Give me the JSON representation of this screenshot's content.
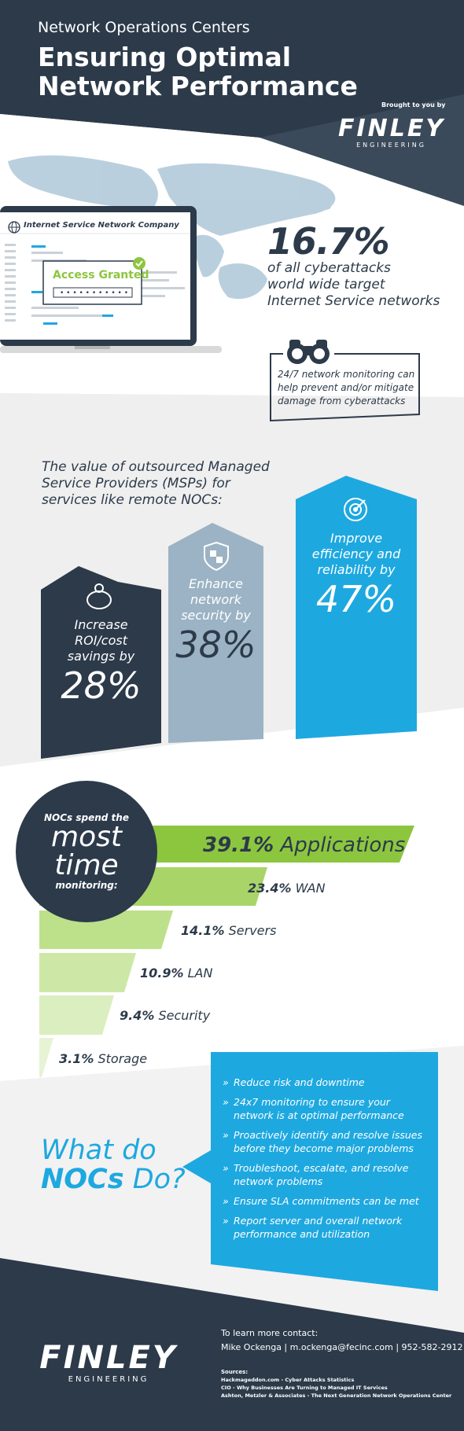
{
  "header": {
    "kicker": "Network Operations Centers",
    "title": "Ensuring Optimal Network Performance",
    "brought_by": "Brought to you by"
  },
  "logo": {
    "word": "FINLEY",
    "sub": "ENGINEERING"
  },
  "laptop": {
    "company": "Internet Service Network Company",
    "access": "Access Granted"
  },
  "stat": {
    "value": "16.7%",
    "line1": "of all cyberattacks",
    "line2": "world wide target",
    "line3": "Internet Service networks"
  },
  "monitoring": {
    "text": "24/7 network monitoring can help prevent and/or mitigate damage from cyberattacks"
  },
  "msp": {
    "intro": "The value of outsourced Managed Service Providers (MSPs) for services like remote NOCs:",
    "columns": [
      {
        "line1": "Increase",
        "line2": "ROI/cost",
        "line3": "savings by",
        "pct": "28%",
        "color": "#2c3a4a",
        "icon": "piggy-bank-icon"
      },
      {
        "line1": "Enhance",
        "line2": "network",
        "line3": "security by",
        "pct": "38%",
        "color": "#9bb3c4",
        "icon": "shield-icon"
      },
      {
        "line1": "Improve",
        "line2": "efficiency and",
        "line3": "reliability by",
        "pct": "47%",
        "color": "#1ea8e0",
        "icon": "target-icon"
      }
    ]
  },
  "noc": {
    "line1": "NOCs spend the",
    "line2": "most",
    "line3": "time",
    "line4": "monitoring:",
    "bars": [
      {
        "pct": "39.1%",
        "label": "Applications",
        "color": "#8cc63f"
      },
      {
        "pct": "23.4%",
        "label": "WAN",
        "color": "#a9d468"
      },
      {
        "pct": "14.1%",
        "label": "Servers",
        "color": "#bde08a"
      },
      {
        "pct": "10.9%",
        "label": "LAN",
        "color": "#cde8a6"
      },
      {
        "pct": "9.4%",
        "label": "Security",
        "color": "#dbeec0"
      },
      {
        "pct": "3.1%",
        "label": "Storage",
        "color": "#e6f3d4"
      }
    ]
  },
  "what": {
    "line1": "What do",
    "bold": "NOCs",
    "rest": " Do?",
    "items": [
      "Reduce risk and downtime",
      "24x7 monitoring to ensure your network is at optimal performance",
      "Proactively identify and resolve issues before they become major problems",
      "Troubleshoot, escalate, and resolve network problems",
      "Ensure SLA commitments can be met",
      "Report server and overall network performance and utilization"
    ]
  },
  "footer": {
    "contact_heading": "To learn more contact:",
    "contact_line": "Mike Ockenga  |  m.ockenga@fecinc.com  |  952-582-2912",
    "sources_heading": "Sources:",
    "sources": [
      "Hackmageddon.com - Cyber Attacks Statistics",
      "CIO - Why Businesses Are Turning to Managed IT Services",
      "Ashton, Metzler & Associates - The Next Generation Network Operations Center"
    ]
  },
  "colors": {
    "navy": "#2c3a4a",
    "blue": "#1ea8e0",
    "green": "#8cc63f",
    "steel": "#9bb3c4"
  }
}
